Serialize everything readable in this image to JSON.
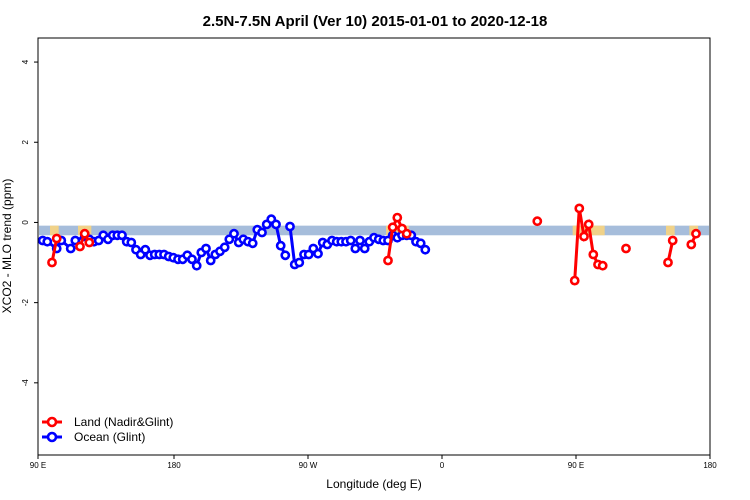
{
  "chart_data": {
    "type": "line",
    "title": "2.5N-7.5N April (Ver 10)   2015-01-01 to 2020-12-18",
    "xlabel": "Longitude (deg E)",
    "ylabel": "XCO2 - MLO trend (ppm)",
    "xlim": [
      90,
      450
    ],
    "ylim": [
      -5.8,
      4.6
    ],
    "x_ticks": [
      {
        "value": 90,
        "label": "90 E"
      },
      {
        "value": 180,
        "label": "180"
      },
      {
        "value": 270,
        "label": "90 W"
      },
      {
        "value": 360,
        "label": "0"
      },
      {
        "value": 450,
        "label": "90 E"
      },
      {
        "value": 540,
        "label": "180"
      }
    ],
    "x_ticks_note": "",
    "y_ticks": [
      {
        "value": -4,
        "label": "-4"
      },
      {
        "value": -2,
        "label": "-2"
      },
      {
        "value": 0,
        "label": "0"
      },
      {
        "value": 2,
        "label": "2"
      },
      {
        "value": 4,
        "label": "4"
      }
    ],
    "band": {
      "y_low": -0.32,
      "y_high": -0.08,
      "color": "#a6bddb"
    },
    "land_band_color": "#fdd67a",
    "legend": {
      "position": "bottom-left"
    },
    "series": [
      {
        "name": "Land (Nadir&Glint)",
        "color": "#ff0000",
        "segments": [
          [
            [
              97.5,
              -1.0
            ],
            [
              100,
              -0.4
            ]
          ],
          [
            [
              112.5,
              -0.6
            ],
            [
              115,
              -0.28
            ],
            [
              117.5,
              -0.5
            ]
          ],
          [
            [
              277.5,
              -0.95
            ],
            [
              280,
              -0.12
            ],
            [
              282.5,
              0.12
            ],
            [
              285,
              -0.15
            ],
            [
              287.5,
              -0.28
            ]
          ],
          [
            [
              357.5,
              0.03
            ]
          ],
          [
            [
              377.5,
              -1.45
            ],
            [
              380,
              0.35
            ],
            [
              382.5,
              -0.35
            ],
            [
              385,
              -0.05
            ],
            [
              387.5,
              -0.8
            ],
            [
              390,
              -1.05
            ],
            [
              392.5,
              -1.08
            ]
          ],
          [
            [
              405,
              -0.65
            ]
          ],
          [
            [
              427.5,
              -1.0
            ],
            [
              430,
              -0.45
            ]
          ],
          [
            [
              440,
              -0.55
            ],
            [
              442.5,
              -0.28
            ]
          ]
        ]
      },
      {
        "name": "Ocean (Glint)",
        "color": "#0000ff",
        "segments": [
          [
            [
              92.5,
              -0.45
            ],
            [
              95,
              -0.48
            ],
            [
              100,
              -0.65
            ],
            [
              102.5,
              -0.45
            ],
            [
              107.5,
              -0.65
            ],
            [
              110,
              -0.45
            ],
            [
              115,
              -0.35
            ],
            [
              117.5,
              -0.42
            ],
            [
              120,
              -0.48
            ],
            [
              122.5,
              -0.45
            ],
            [
              125,
              -0.32
            ],
            [
              127.5,
              -0.42
            ],
            [
              130,
              -0.32
            ],
            [
              132.5,
              -0.32
            ],
            [
              135,
              -0.32
            ],
            [
              137.5,
              -0.48
            ],
            [
              140,
              -0.5
            ],
            [
              142.5,
              -0.68
            ],
            [
              145,
              -0.8
            ],
            [
              147.5,
              -0.68
            ],
            [
              150,
              -0.82
            ],
            [
              152.5,
              -0.8
            ],
            [
              155,
              -0.8
            ],
            [
              157.5,
              -0.8
            ],
            [
              160,
              -0.85
            ],
            [
              162.5,
              -0.88
            ],
            [
              165,
              -0.92
            ],
            [
              167.5,
              -0.92
            ],
            [
              170,
              -0.82
            ],
            [
              172.5,
              -0.92
            ],
            [
              175,
              -1.08
            ],
            [
              177.5,
              -0.75
            ],
            [
              180,
              -0.65
            ],
            [
              182.5,
              -0.95
            ],
            [
              185,
              -0.8
            ],
            [
              187.5,
              -0.72
            ],
            [
              190,
              -0.62
            ],
            [
              192.5,
              -0.42
            ],
            [
              195,
              -0.28
            ],
            [
              197.5,
              -0.5
            ],
            [
              200,
              -0.42
            ],
            [
              202.5,
              -0.48
            ],
            [
              205,
              -0.52
            ],
            [
              207.5,
              -0.18
            ],
            [
              210,
              -0.25
            ],
            [
              212.5,
              -0.05
            ],
            [
              215,
              0.08
            ],
            [
              217.5,
              -0.05
            ],
            [
              220,
              -0.58
            ],
            [
              222.5,
              -0.82
            ]
          ],
          [
            [
              225,
              -0.1
            ],
            [
              227.5,
              -1.05
            ]
          ],
          [
            [
              230,
              -1.0
            ],
            [
              232.5,
              -0.8
            ],
            [
              235,
              -0.8
            ],
            [
              237.5,
              -0.65
            ],
            [
              240,
              -0.78
            ],
            [
              242.5,
              -0.5
            ],
            [
              245,
              -0.55
            ],
            [
              247.5,
              -0.45
            ],
            [
              250,
              -0.48
            ],
            [
              252.5,
              -0.48
            ],
            [
              255,
              -0.48
            ],
            [
              257.5,
              -0.45
            ],
            [
              260,
              -0.65
            ],
            [
              262.5,
              -0.45
            ],
            [
              265,
              -0.65
            ],
            [
              267.5,
              -0.48
            ],
            [
              270,
              -0.38
            ],
            [
              272.5,
              -0.42
            ],
            [
              275,
              -0.45
            ],
            [
              277.5,
              -0.45
            ],
            [
              280,
              -0.32
            ],
            [
              282.5,
              -0.38
            ],
            [
              285,
              -0.32
            ],
            [
              287.5,
              -0.32
            ],
            [
              290,
              -0.32
            ],
            [
              292.5,
              -0.48
            ],
            [
              295,
              -0.52
            ],
            [
              297.5,
              -0.68
            ]
          ]
        ]
      }
    ]
  }
}
